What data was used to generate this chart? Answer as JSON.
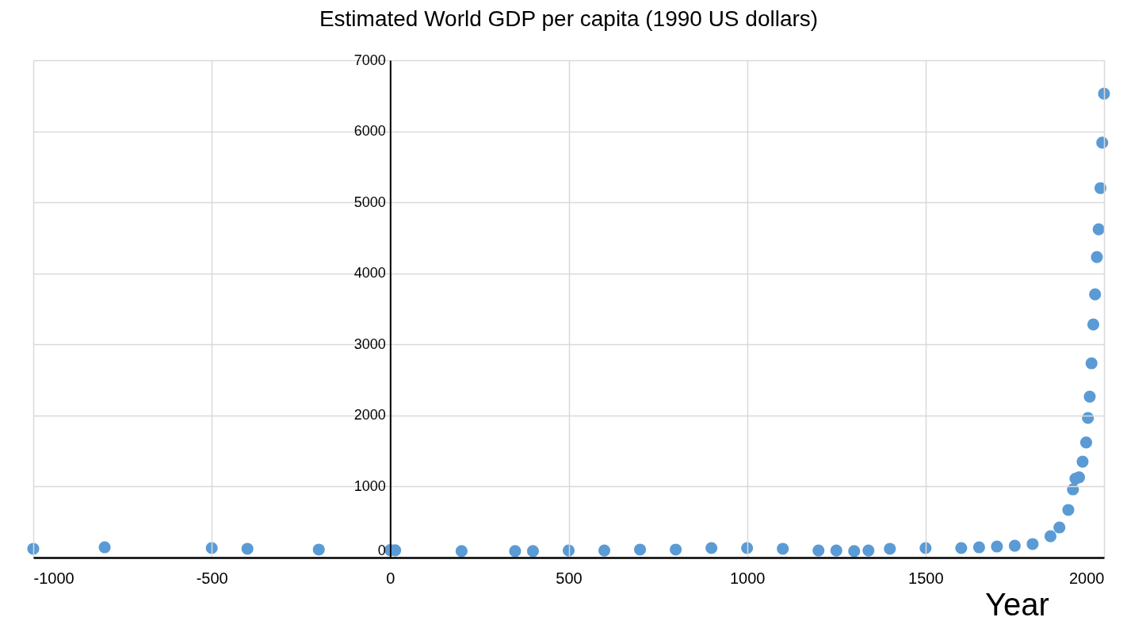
{
  "chart_data": {
    "type": "scatter",
    "title": "Estimated World GDP per capita (1990 US dollars)",
    "xlabel": "Year",
    "x": [
      -1000,
      -800,
      -500,
      -400,
      -200,
      0,
      14,
      200,
      350,
      400,
      500,
      600,
      700,
      800,
      900,
      1000,
      1100,
      1200,
      1250,
      1300,
      1340,
      1400,
      1500,
      1600,
      1650,
      1700,
      1750,
      1800,
      1850,
      1875,
      1900,
      1913,
      1920,
      1930,
      1940,
      1950,
      1955,
      1960,
      1965,
      1970,
      1975,
      1980,
      1985,
      1990,
      1995,
      2000
    ],
    "series": [
      {
        "color": "#5b9bd5",
        "values": [
          123,
          145,
          134,
          123,
          112,
          105,
          102,
          90,
          90,
          90,
          100,
          100,
          112,
          112,
          134,
          134,
          123,
          100,
          100,
          90,
          100,
          123,
          134,
          134,
          145,
          156,
          167,
          190,
          300,
          424,
          670,
          960,
          1110,
          1130,
          1350,
          1620,
          1965,
          2265,
          2735,
          3280,
          3705,
          4230,
          4620,
          5200,
          5840,
          6530
        ]
      }
    ],
    "xlim": [
      -1000,
      2000
    ],
    "xticks": [
      -1000,
      -500,
      0,
      500,
      1000,
      1500,
      2000
    ],
    "ylim": [
      0,
      7000
    ],
    "yticks": [
      0,
      1000,
      2000,
      3000,
      4000,
      5000,
      6000,
      7000
    ],
    "grid": true,
    "marker": "circle"
  }
}
